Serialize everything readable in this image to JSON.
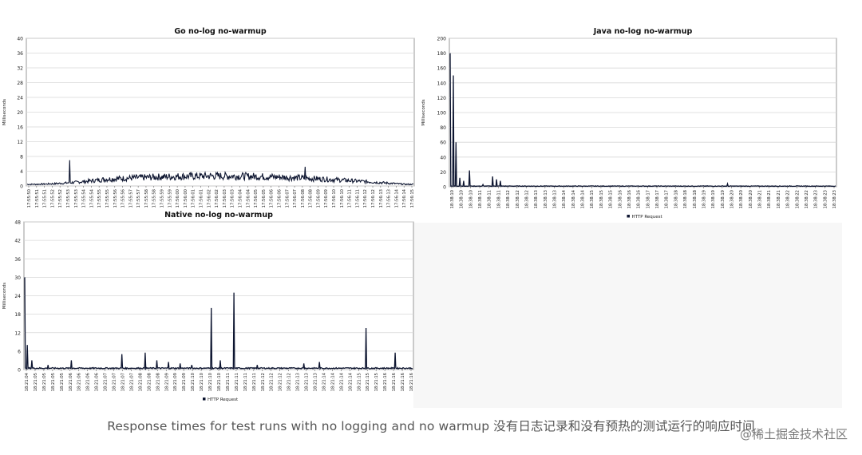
{
  "caption": "Response times for test runs with no logging and no warmup 没有日志记录和没有预热的测试运行的响应时间",
  "watermark": "@稀土掘金技术社区",
  "chart_data": [
    {
      "id": "go",
      "type": "line",
      "title": "Go no-log no-warmup",
      "ylabel": "Milliseconds",
      "ylim": [
        0,
        40
      ],
      "yticks": [
        0,
        4,
        8,
        12,
        16,
        20,
        24,
        28,
        32,
        36,
        40
      ],
      "xticks": [
        "17:55:50",
        "17:55:51",
        "17:55:51",
        "17:55:52",
        "17:55:52",
        "17:55:53",
        "17:55:53",
        "17:55:54",
        "17:55:54",
        "17:55:55",
        "17:55:55",
        "17:55:56",
        "17:55:56",
        "17:55:57",
        "17:55:57",
        "17:55:58",
        "17:55:58",
        "17:55:59",
        "17:55:59",
        "17:56:00",
        "17:56:00",
        "17:56:01",
        "17:56:01",
        "17:56:02",
        "17:56:02",
        "17:56:03",
        "17:56:03",
        "17:56:04",
        "17:56:04",
        "17:56:05",
        "17:56:05",
        "17:56:06",
        "17:56:06",
        "17:56:07",
        "17:56:07",
        "17:56:08",
        "17:56:08",
        "17:56:09",
        "17:56:09",
        "17:56:10",
        "17:56:10",
        "17:56:11",
        "17:56:11",
        "17:56:12",
        "17:56:12",
        "17:56:13",
        "17:56:13",
        "17:56:14",
        "17:56:14",
        "17:56:15"
      ],
      "legend": "",
      "series": [
        {
          "pattern": "noisy-hump",
          "baseline_ms": 0.5,
          "peak_ms": 3,
          "spikes": [
            [
              0.11,
              7
            ],
            [
              0.72,
              5.2
            ]
          ]
        }
      ]
    },
    {
      "id": "java",
      "type": "line",
      "title": "Java no-log no-warmup",
      "ylabel": "Milliseconds",
      "ylim": [
        0,
        200
      ],
      "yticks": [
        0,
        20,
        40,
        60,
        80,
        100,
        120,
        140,
        160,
        180,
        200
      ],
      "xticks": [
        "18:38:10",
        "18:38:10",
        "18:38:10",
        "18:38:11",
        "18:38:11",
        "18:38:11",
        "18:38:12",
        "18:38:12",
        "18:38:12",
        "18:38:13",
        "18:38:13",
        "18:38:13",
        "18:38:14",
        "18:38:14",
        "18:38:14",
        "18:38:15",
        "18:38:15",
        "18:38:15",
        "18:38:16",
        "18:38:16",
        "18:38:16",
        "18:38:17",
        "18:38:17",
        "18:38:17",
        "18:38:18",
        "18:38:18",
        "18:38:18",
        "18:38:19",
        "18:38:19",
        "18:38:19",
        "18:38:20",
        "18:38:20",
        "18:38:20",
        "18:38:21",
        "18:38:21",
        "18:38:21",
        "18:38:22",
        "18:38:22",
        "18:38:22",
        "18:38:23",
        "18:38:23",
        "18:38:23"
      ],
      "legend": "HTTP Request",
      "series": [
        {
          "pattern": "spiky",
          "baseline_ms": 1,
          "spikes": [
            [
              0.0,
              180
            ],
            [
              0.008,
              150
            ],
            [
              0.015,
              60
            ],
            [
              0.025,
              12
            ],
            [
              0.035,
              8
            ],
            [
              0.05,
              22
            ],
            [
              0.085,
              3
            ],
            [
              0.11,
              14
            ],
            [
              0.12,
              10
            ],
            [
              0.13,
              8
            ],
            [
              0.72,
              4
            ]
          ]
        }
      ]
    },
    {
      "id": "native",
      "type": "line",
      "title": "Native no-log no-warmup",
      "ylabel": "Milliseconds",
      "ylim": [
        0,
        48
      ],
      "yticks": [
        0,
        6,
        12,
        18,
        24,
        30,
        36,
        42,
        48
      ],
      "xticks": [
        "18:21:04",
        "18:21:05",
        "18:21:05",
        "18:21:05",
        "18:21:05",
        "18:21:06",
        "18:21:06",
        "18:21:06",
        "18:21:06",
        "18:21:07",
        "18:21:07",
        "18:21:07",
        "18:21:07",
        "18:21:08",
        "18:21:08",
        "18:21:08",
        "18:21:09",
        "18:21:09",
        "18:21:09",
        "18:21:10",
        "18:21:10",
        "18:21:10",
        "18:21:10",
        "18:21:11",
        "18:21:11",
        "18:21:11",
        "18:21:11",
        "18:21:12",
        "18:21:12",
        "18:21:12",
        "18:21:12",
        "18:21:13",
        "18:21:13",
        "18:21:13",
        "18:21:14",
        "18:21:14",
        "18:21:14",
        "18:21:14",
        "18:21:15",
        "18:21:15",
        "18:21:15",
        "18:21:16",
        "18:21:16",
        "18:21:16",
        "18:21:16"
      ],
      "legend": "HTTP Request",
      "series": [
        {
          "pattern": "spiky",
          "baseline_ms": 0.5,
          "spikes": [
            [
              0.0,
              30
            ],
            [
              0.006,
              8
            ],
            [
              0.018,
              3
            ],
            [
              0.06,
              1.5
            ],
            [
              0.12,
              3
            ],
            [
              0.25,
              5
            ],
            [
              0.31,
              5.5
            ],
            [
              0.34,
              3
            ],
            [
              0.37,
              2.5
            ],
            [
              0.4,
              2
            ],
            [
              0.43,
              1.5
            ],
            [
              0.48,
              20
            ],
            [
              0.505,
              3
            ],
            [
              0.54,
              25
            ],
            [
              0.6,
              1.5
            ],
            [
              0.72,
              2
            ],
            [
              0.76,
              2.5
            ],
            [
              0.88,
              13.5
            ],
            [
              0.955,
              5.5
            ]
          ]
        }
      ]
    }
  ]
}
